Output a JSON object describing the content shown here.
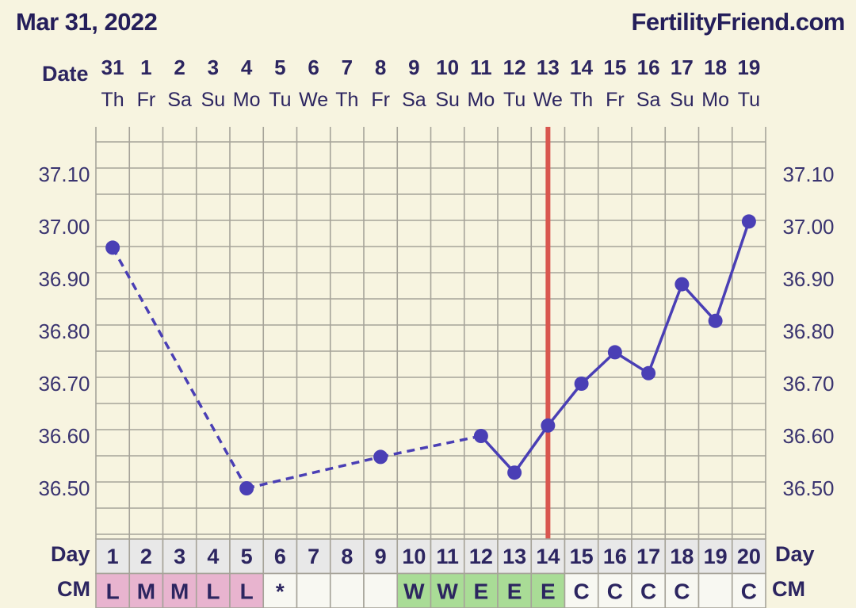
{
  "header": {
    "date": "Mar 31, 2022",
    "brand": "FertilityFriend.com"
  },
  "labels": {
    "date": "Date",
    "day": "Day",
    "cm": "CM"
  },
  "colors": {
    "line": "#4a3fb5",
    "ovulation": "#d9574f",
    "grid": "#a6a399",
    "menstrual": "#e8b4cf",
    "fertile": "#a9dc96",
    "cell": "#f8f8f2",
    "day_cell": "#e8e8e8"
  },
  "chart_data": {
    "type": "line",
    "title": "",
    "ylabel": "",
    "ylim": [
      36.4,
      37.2
    ],
    "yticks": [
      "36.50",
      "36.60",
      "36.70",
      "36.80",
      "36.90",
      "37.00",
      "37.10"
    ],
    "dates": [
      "31",
      "1",
      "2",
      "3",
      "4",
      "5",
      "6",
      "7",
      "8",
      "9",
      "10",
      "11",
      "12",
      "13",
      "14",
      "15",
      "16",
      "17",
      "18",
      "19"
    ],
    "weekdays": [
      "Th",
      "Fr",
      "Sa",
      "Su",
      "Mo",
      "Tu",
      "We",
      "Th",
      "Fr",
      "Sa",
      "Su",
      "Mo",
      "Tu",
      "We",
      "Th",
      "Fr",
      "Sa",
      "Su",
      "Mo",
      "Tu"
    ],
    "cycle_days": [
      "1",
      "2",
      "3",
      "4",
      "5",
      "6",
      "7",
      "8",
      "9",
      "10",
      "11",
      "12",
      "13",
      "14",
      "15",
      "16",
      "17",
      "18",
      "19",
      "20"
    ],
    "temperatures": [
      36.96,
      null,
      null,
      null,
      36.5,
      null,
      null,
      null,
      36.56,
      null,
      null,
      36.6,
      36.53,
      36.62,
      36.7,
      36.76,
      36.72,
      36.89,
      36.82,
      37.01
    ],
    "dashed_segments": [
      [
        0,
        4
      ],
      [
        4,
        8
      ],
      [
        8,
        11
      ]
    ],
    "ovulation_day_index": 13,
    "cervical_mucus": [
      "L",
      "M",
      "M",
      "L",
      "L",
      "*",
      "",
      "",
      "",
      "W",
      "W",
      "E",
      "E",
      "E",
      "C",
      "C",
      "C",
      "C",
      "",
      "C"
    ],
    "cm_types": [
      "menstrual",
      "menstrual",
      "menstrual",
      "menstrual",
      "menstrual",
      "plain",
      "plain",
      "plain",
      "plain",
      "fertile",
      "fertile",
      "fertile",
      "fertile",
      "fertile",
      "plain",
      "plain",
      "plain",
      "plain",
      "plain",
      "plain"
    ]
  }
}
